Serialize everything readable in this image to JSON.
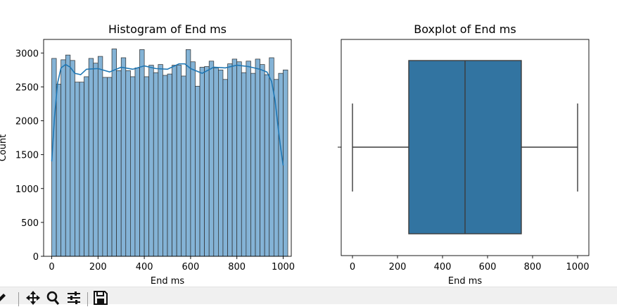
{
  "chart_data": [
    {
      "type": "bar",
      "title": "Histogram of End ms",
      "xlabel": "End ms",
      "ylabel": "Count",
      "xlim": [
        -35,
        1035
      ],
      "ylim": [
        0,
        3200
      ],
      "xticks": [
        0,
        200,
        400,
        600,
        800,
        1000
      ],
      "yticks": [
        0,
        500,
        1000,
        1500,
        2000,
        2500,
        3000
      ],
      "bin_start": 0,
      "bin_width": 20,
      "values": [
        2920,
        2540,
        2900,
        2970,
        2890,
        2570,
        2570,
        2650,
        2920,
        2850,
        2950,
        2640,
        2640,
        3060,
        2740,
        2930,
        2740,
        2650,
        2780,
        3050,
        2650,
        2820,
        2710,
        2830,
        2670,
        2690,
        2820,
        2820,
        2660,
        3050,
        2870,
        2510,
        2790,
        2800,
        2880,
        2780,
        2750,
        2610,
        2840,
        2910,
        2870,
        2710,
        2880,
        2700,
        2910,
        2830,
        2680,
        2930,
        2610,
        2700,
        2750
      ],
      "kde_x": [
        0,
        12,
        25,
        40,
        60,
        80,
        100,
        125,
        150,
        200,
        250,
        300,
        350,
        400,
        450,
        500,
        550,
        575,
        600,
        650,
        700,
        750,
        800,
        850,
        900,
        930,
        950,
        965,
        980,
        990,
        1000
      ],
      "kde_y": [
        1400,
        2050,
        2550,
        2780,
        2830,
        2790,
        2700,
        2680,
        2760,
        2770,
        2720,
        2790,
        2760,
        2810,
        2770,
        2760,
        2840,
        2840,
        2770,
        2700,
        2790,
        2780,
        2820,
        2800,
        2760,
        2720,
        2580,
        2300,
        1850,
        1580,
        1340
      ],
      "bar_color": "#84b3d6",
      "bar_edge": "#2b2b2b",
      "kde_color": "#1f77b4"
    },
    {
      "type": "box",
      "title": "Boxplot of End ms",
      "xlabel": "End ms",
      "xlim": [
        -50,
        1050
      ],
      "xticks": [
        0,
        200,
        400,
        600,
        800,
        1000
      ],
      "min": 0,
      "q1": 250,
      "median": 500,
      "q3": 750,
      "max": 1000,
      "box_color": "#3274a1",
      "line_color": "#3c3c3c"
    }
  ],
  "toolbar": {
    "buttons": [
      "pan-icon",
      "zoom-icon",
      "configure-subplots-icon",
      "save-icon"
    ]
  }
}
